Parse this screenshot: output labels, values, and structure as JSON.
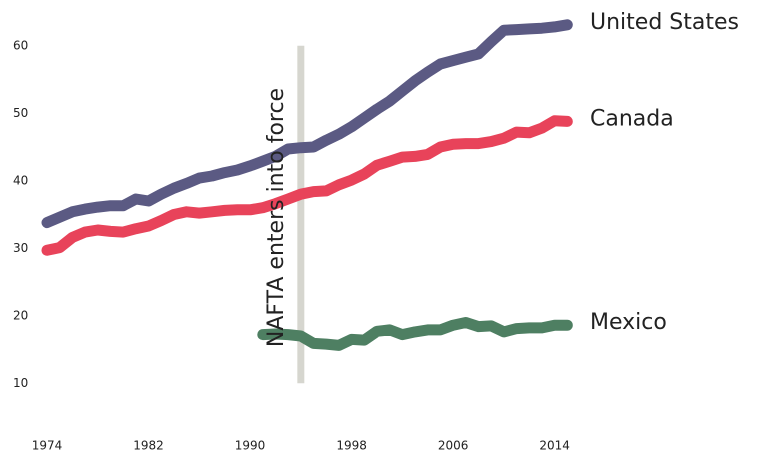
{
  "chart_data": {
    "type": "line",
    "x": [
      1974,
      1975,
      1976,
      1977,
      1978,
      1979,
      1980,
      1981,
      1982,
      1983,
      1984,
      1985,
      1986,
      1987,
      1988,
      1989,
      1990,
      1991,
      1992,
      1993,
      1994,
      1995,
      1996,
      1997,
      1998,
      1999,
      2000,
      2001,
      2002,
      2003,
      2004,
      2005,
      2006,
      2007,
      2008,
      2009,
      2010,
      2011,
      2012,
      2013,
      2014,
      2015
    ],
    "series": [
      {
        "name": "United States",
        "color": "#5b5a83",
        "values": [
          33.8,
          34.6,
          35.4,
          35.8,
          36.1,
          36.3,
          36.3,
          37.3,
          37.0,
          38.0,
          38.9,
          39.6,
          40.4,
          40.7,
          41.2,
          41.6,
          42.2,
          42.9,
          43.6,
          44.7,
          44.9,
          45.0,
          46.0,
          46.9,
          48.0,
          49.3,
          50.6,
          51.8,
          53.3,
          54.8,
          56.1,
          57.3,
          57.8,
          58.3,
          58.8,
          60.6,
          62.3,
          62.4,
          62.5,
          62.6,
          62.8,
          63.1
        ]
      },
      {
        "name": "Canada",
        "color": "#e8435a",
        "values": [
          29.7,
          30.1,
          31.6,
          32.4,
          32.7,
          32.5,
          32.4,
          32.9,
          33.3,
          34.1,
          35.0,
          35.4,
          35.2,
          35.4,
          35.6,
          35.7,
          35.7,
          36.0,
          36.6,
          37.3,
          38.0,
          38.4,
          38.5,
          39.4,
          40.1,
          41.0,
          42.3,
          42.9,
          43.5,
          43.6,
          43.9,
          45.0,
          45.4,
          45.5,
          45.5,
          45.8,
          46.3,
          47.2,
          47.1,
          47.8,
          48.9,
          48.8
        ]
      },
      {
        "name": "Mexico",
        "color": "#4e7f62",
        "values": [
          null,
          null,
          null,
          null,
          null,
          null,
          null,
          null,
          null,
          null,
          null,
          null,
          null,
          null,
          null,
          null,
          null,
          17.2,
          17.3,
          17.2,
          17.0,
          15.9,
          15.8,
          15.6,
          16.5,
          16.4,
          17.7,
          17.9,
          17.2,
          17.6,
          17.9,
          17.9,
          18.6,
          19.0,
          18.4,
          18.5,
          17.6,
          18.1,
          18.2,
          18.2,
          18.6,
          18.6
        ]
      }
    ],
    "xlim": [
      1972.5,
      2016
    ],
    "xticks": [
      1974,
      1982,
      1990,
      1998,
      2006,
      2014
    ],
    "ylim": [
      5,
      65
    ],
    "yticks": [
      10,
      20,
      30,
      40,
      50,
      60
    ],
    "annotation": {
      "text": "NAFTA enters into force",
      "x": 1994,
      "color": "#d6d6cf"
    }
  }
}
